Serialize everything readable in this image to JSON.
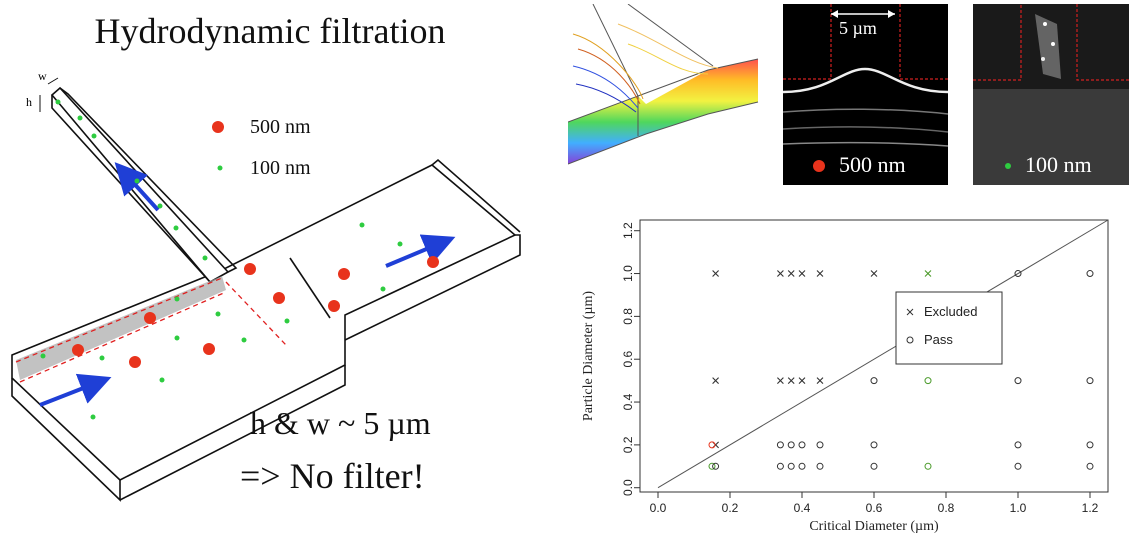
{
  "title": "Hydrodynamic filtration",
  "diagram": {
    "dim_w": "w",
    "dim_h": "h",
    "legend": [
      {
        "label": "500 nm",
        "color": "#e8331c",
        "kind": "large-particle"
      },
      {
        "label": "100 nm",
        "color": "#2ecc40",
        "kind": "small-particle"
      }
    ]
  },
  "statement_1": "h & w ~ 5 µm",
  "statement_2": "=> No filter!",
  "micrographs": [
    {
      "scale_label": "5 µm",
      "particle_label": "500 nm",
      "particle_color": "#e8331c"
    },
    {
      "particle_label": "100 nm",
      "particle_color": "#2ecc40"
    }
  ],
  "chart_data": {
    "type": "scatter",
    "xlabel": "Critical Diameter (µm)",
    "ylabel": "Particle Diameter (µm)",
    "xlim": [
      -0.05,
      1.25
    ],
    "ylim": [
      -0.02,
      1.25
    ],
    "xticks": [
      "0.0",
      "0.2",
      "0.4",
      "0.6",
      "0.8",
      "1.0",
      "1.2"
    ],
    "yticks": [
      "0.0",
      "0.2",
      "0.4",
      "0.6",
      "0.8",
      "1.0",
      "1.2"
    ],
    "legend": [
      {
        "label": "Excluded",
        "marker": "x"
      },
      {
        "label": "Pass",
        "marker": "o"
      }
    ],
    "legend_position": "center-right",
    "diagonal_line": true,
    "series": [
      {
        "name": "Excluded",
        "marker": "x",
        "points": [
          {
            "x": 0.16,
            "y": 1.0
          },
          {
            "x": 0.34,
            "y": 1.0
          },
          {
            "x": 0.37,
            "y": 1.0
          },
          {
            "x": 0.4,
            "y": 1.0
          },
          {
            "x": 0.45,
            "y": 1.0
          },
          {
            "x": 0.6,
            "y": 1.0
          },
          {
            "x": 0.75,
            "y": 1.0,
            "color": "#4a9a2a"
          },
          {
            "x": 0.16,
            "y": 0.5
          },
          {
            "x": 0.34,
            "y": 0.5
          },
          {
            "x": 0.37,
            "y": 0.5
          },
          {
            "x": 0.4,
            "y": 0.5
          },
          {
            "x": 0.45,
            "y": 0.5
          },
          {
            "x": 0.16,
            "y": 0.2
          }
        ]
      },
      {
        "name": "Pass",
        "marker": "o",
        "points": [
          {
            "x": 1.0,
            "y": 1.0
          },
          {
            "x": 1.2,
            "y": 1.0
          },
          {
            "x": 0.6,
            "y": 0.5
          },
          {
            "x": 0.75,
            "y": 0.5,
            "color": "#4a9a2a"
          },
          {
            "x": 1.0,
            "y": 0.5
          },
          {
            "x": 1.2,
            "y": 0.5
          },
          {
            "x": 0.15,
            "y": 0.2,
            "color": "#e8331c"
          },
          {
            "x": 0.34,
            "y": 0.2
          },
          {
            "x": 0.37,
            "y": 0.2
          },
          {
            "x": 0.4,
            "y": 0.2
          },
          {
            "x": 0.45,
            "y": 0.2
          },
          {
            "x": 0.6,
            "y": 0.2
          },
          {
            "x": 1.0,
            "y": 0.2
          },
          {
            "x": 1.2,
            "y": 0.2
          },
          {
            "x": 0.15,
            "y": 0.1,
            "color": "#4a9a2a"
          },
          {
            "x": 0.16,
            "y": 0.1
          },
          {
            "x": 0.34,
            "y": 0.1
          },
          {
            "x": 0.37,
            "y": 0.1
          },
          {
            "x": 0.4,
            "y": 0.1
          },
          {
            "x": 0.45,
            "y": 0.1
          },
          {
            "x": 0.6,
            "y": 0.1
          },
          {
            "x": 0.75,
            "y": 0.1,
            "color": "#4a9a2a"
          },
          {
            "x": 1.0,
            "y": 0.1
          },
          {
            "x": 1.2,
            "y": 0.1
          }
        ]
      }
    ]
  }
}
